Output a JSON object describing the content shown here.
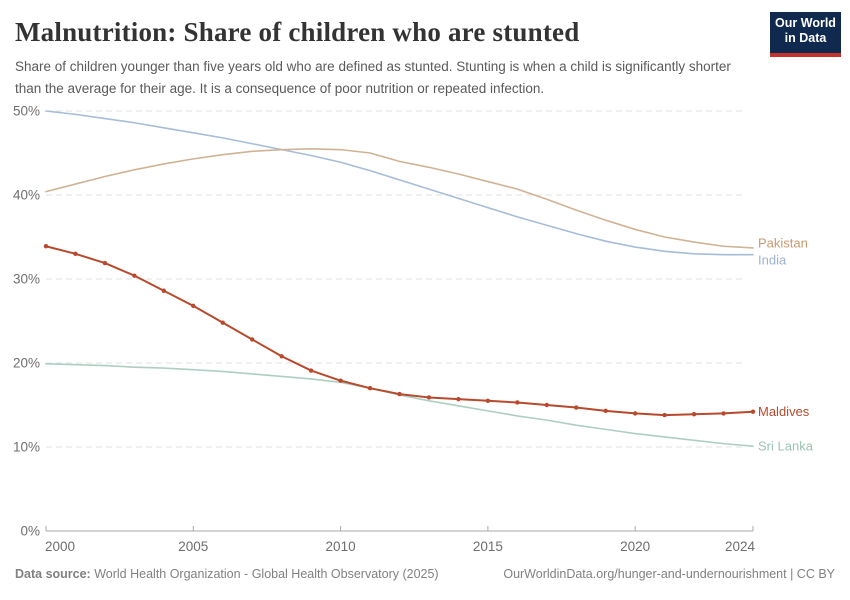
{
  "header": {
    "title": "Malnutrition: Share of children who are stunted",
    "subtitle": "Share of children younger than five years old who are defined as stunted. Stunting is when a child is significantly shorter than the average for their age. It is a consequence of poor nutrition or repeated infection.",
    "logo": {
      "line1": "Our World",
      "line2": "in Data",
      "background": "#10294f",
      "stripe": "#c5332d"
    }
  },
  "chart_data": {
    "type": "line",
    "title": "Malnutrition: Share of children who are stunted",
    "xlabel": "",
    "ylabel": "",
    "x": [
      2000,
      2001,
      2002,
      2003,
      2004,
      2005,
      2006,
      2007,
      2008,
      2009,
      2010,
      2011,
      2012,
      2013,
      2014,
      2015,
      2016,
      2017,
      2018,
      2019,
      2020,
      2021,
      2022,
      2023,
      2024
    ],
    "x_ticks": [
      2000,
      2005,
      2010,
      2015,
      2020,
      2024
    ],
    "y_ticks": [
      0,
      10,
      20,
      30,
      40,
      50
    ],
    "y_tick_suffix": "%",
    "ylim": [
      0,
      50
    ],
    "grid": "horizontal-dashed",
    "legend_position": "right-end-labels",
    "series": [
      {
        "name": "India",
        "color": "#a6bdd8",
        "label_color": "#9db3d3",
        "markers": false,
        "values": [
          50.0,
          49.6,
          49.1,
          48.6,
          48.0,
          47.4,
          46.8,
          46.1,
          45.4,
          44.7,
          43.9,
          42.9,
          41.8,
          40.7,
          39.6,
          38.5,
          37.4,
          36.4,
          35.4,
          34.5,
          33.8,
          33.3,
          33.0,
          32.9,
          32.9
        ]
      },
      {
        "name": "Pakistan",
        "color": "#d0b394",
        "label_color": "#c79a70",
        "markers": false,
        "values": [
          40.4,
          41.3,
          42.2,
          43.0,
          43.7,
          44.3,
          44.8,
          45.2,
          45.4,
          45.5,
          45.4,
          45.0,
          44.0,
          43.3,
          42.5,
          41.6,
          40.7,
          39.5,
          38.2,
          37.0,
          35.9,
          35.0,
          34.4,
          33.9,
          33.7
        ]
      },
      {
        "name": "Sri Lanka",
        "color": "#aecfc0",
        "label_color": "#9cc4b2",
        "markers": false,
        "values": [
          19.9,
          19.8,
          19.7,
          19.5,
          19.4,
          19.2,
          19.0,
          18.7,
          18.4,
          18.1,
          17.7,
          17.0,
          16.2,
          15.5,
          14.9,
          14.3,
          13.7,
          13.2,
          12.6,
          12.1,
          11.6,
          11.2,
          10.8,
          10.4,
          10.1
        ]
      },
      {
        "name": "Maldives",
        "color": "#b8492c",
        "label_color": "#b8492c",
        "markers": true,
        "values": [
          33.9,
          33.0,
          31.9,
          30.4,
          28.6,
          26.8,
          24.8,
          22.8,
          20.8,
          19.1,
          17.9,
          17.0,
          16.3,
          15.9,
          15.7,
          15.5,
          15.3,
          15.0,
          14.7,
          14.3,
          14.0,
          13.8,
          13.9,
          14.0,
          14.2
        ]
      }
    ]
  },
  "footer": {
    "source_label": "Data source:",
    "source_text": "World Health Organization - Global Health Observatory (2025)",
    "link_text": "OurWorldinData.org/hunger-and-undernourishment | CC BY"
  }
}
